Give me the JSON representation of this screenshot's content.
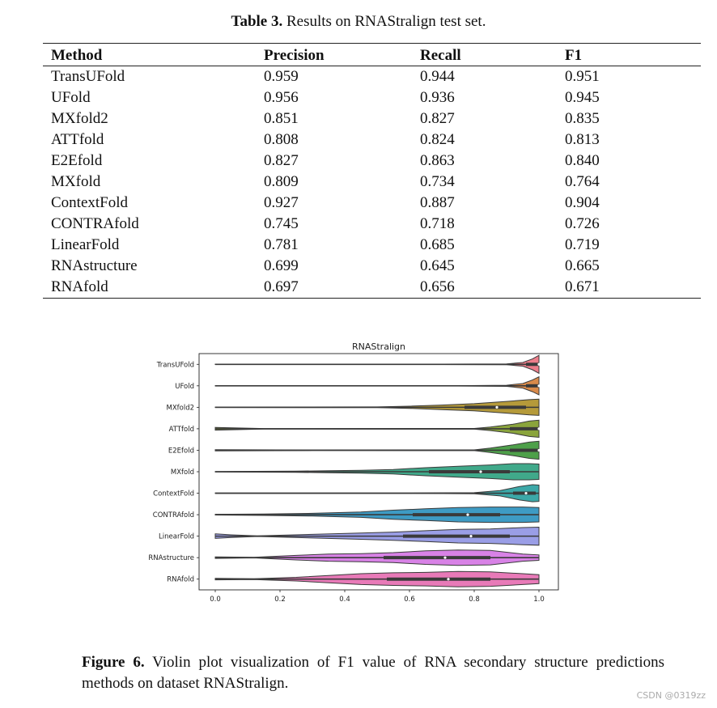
{
  "table": {
    "caption_label": "Table 3.",
    "caption_text": " Results on RNAStralign test set.",
    "headers": [
      "Method",
      "Precision",
      "Recall",
      "F1"
    ],
    "rows": [
      [
        "TransUFold",
        "0.959",
        "0.944",
        "0.951"
      ],
      [
        "UFold",
        "0.956",
        "0.936",
        "0.945"
      ],
      [
        "MXfold2",
        "0.851",
        "0.827",
        "0.835"
      ],
      [
        "ATTfold",
        "0.808",
        "0.824",
        "0.813"
      ],
      [
        "E2Efold",
        "0.827",
        "0.863",
        "0.840"
      ],
      [
        "MXfold",
        "0.809",
        "0.734",
        "0.764"
      ],
      [
        "ContextFold",
        "0.927",
        "0.887",
        "0.904"
      ],
      [
        "CONTRAfold",
        "0.745",
        "0.718",
        "0.726"
      ],
      [
        "LinearFold",
        "0.781",
        "0.685",
        "0.719"
      ],
      [
        "RNAstructure",
        "0.699",
        "0.645",
        "0.665"
      ],
      [
        "RNAfold",
        "0.697",
        "0.656",
        "0.671"
      ]
    ]
  },
  "chart_data": {
    "type": "violin",
    "title": "RNAStralign",
    "xlabel": "",
    "ylabel": "",
    "xlim": [
      -0.05,
      1.06
    ],
    "xticks": [
      "0.0",
      "0.2",
      "0.4",
      "0.6",
      "0.8",
      "1.0"
    ],
    "grid": false,
    "categories": [
      "TransUFold",
      "UFold",
      "MXfold2",
      "ATTfold",
      "E2Efold",
      "MXfold",
      "ContextFold",
      "CONTRAfold",
      "LinearFold",
      "RNAstructure",
      "RNAfold"
    ],
    "colors": [
      "#ed7d8a",
      "#d98a4a",
      "#b59a3a",
      "#8aa43c",
      "#4ea04a",
      "#40a98a",
      "#3ca8a8",
      "#3e9bc4",
      "#9a9ee6",
      "#d882e6",
      "#e87ab8"
    ],
    "series": [
      {
        "min": 0.0,
        "q1": 0.96,
        "median": 1.0,
        "q3": 1.0,
        "max": 1.0,
        "density": [
          [
            0.0,
            0.02
          ],
          [
            0.7,
            0.02
          ],
          [
            0.9,
            0.05
          ],
          [
            0.95,
            0.2
          ],
          [
            0.98,
            0.6
          ],
          [
            1.0,
            1.0
          ]
        ]
      },
      {
        "min": 0.0,
        "q1": 0.96,
        "median": 1.0,
        "q3": 1.0,
        "max": 1.0,
        "density": [
          [
            0.0,
            0.02
          ],
          [
            0.75,
            0.02
          ],
          [
            0.9,
            0.06
          ],
          [
            0.95,
            0.25
          ],
          [
            0.98,
            0.65
          ],
          [
            1.0,
            1.0
          ]
        ]
      },
      {
        "min": 0.0,
        "q1": 0.77,
        "median": 0.87,
        "q3": 0.96,
        "max": 1.0,
        "density": [
          [
            0.0,
            0.02
          ],
          [
            0.5,
            0.04
          ],
          [
            0.6,
            0.12
          ],
          [
            0.7,
            0.25
          ],
          [
            0.8,
            0.4
          ],
          [
            0.9,
            0.65
          ],
          [
            0.97,
            0.85
          ],
          [
            1.0,
            0.9
          ]
        ]
      },
      {
        "min": 0.0,
        "q1": 0.91,
        "median": 1.0,
        "q3": 1.0,
        "max": 1.0,
        "density": [
          [
            0.0,
            0.15
          ],
          [
            0.04,
            0.12
          ],
          [
            0.15,
            0.03
          ],
          [
            0.8,
            0.04
          ],
          [
            0.85,
            0.2
          ],
          [
            0.92,
            0.5
          ],
          [
            0.97,
            0.85
          ],
          [
            1.0,
            0.95
          ]
        ]
      },
      {
        "min": 0.0,
        "q1": 0.91,
        "median": 1.0,
        "q3": 1.0,
        "max": 1.0,
        "density": [
          [
            0.0,
            0.07
          ],
          [
            0.3,
            0.03
          ],
          [
            0.8,
            0.04
          ],
          [
            0.85,
            0.25
          ],
          [
            0.92,
            0.6
          ],
          [
            0.97,
            0.9
          ],
          [
            1.0,
            1.0
          ]
        ]
      },
      {
        "min": 0.0,
        "q1": 0.66,
        "median": 0.82,
        "q3": 0.91,
        "max": 1.0,
        "density": [
          [
            0.0,
            0.03
          ],
          [
            0.25,
            0.06
          ],
          [
            0.35,
            0.12
          ],
          [
            0.45,
            0.15
          ],
          [
            0.55,
            0.25
          ],
          [
            0.65,
            0.45
          ],
          [
            0.75,
            0.6
          ],
          [
            0.85,
            0.75
          ],
          [
            0.92,
            0.9
          ],
          [
            0.97,
            0.9
          ],
          [
            1.0,
            0.85
          ]
        ]
      },
      {
        "min": 0.0,
        "q1": 0.92,
        "median": 0.96,
        "q3": 0.99,
        "max": 1.0,
        "density": [
          [
            0.0,
            0.02
          ],
          [
            0.6,
            0.02
          ],
          [
            0.8,
            0.06
          ],
          [
            0.88,
            0.3
          ],
          [
            0.94,
            0.75
          ],
          [
            0.98,
            0.95
          ],
          [
            1.0,
            0.9
          ]
        ]
      },
      {
        "min": 0.0,
        "q1": 0.61,
        "median": 0.78,
        "q3": 0.88,
        "max": 1.0,
        "density": [
          [
            0.0,
            0.04
          ],
          [
            0.15,
            0.08
          ],
          [
            0.3,
            0.15
          ],
          [
            0.45,
            0.3
          ],
          [
            0.55,
            0.5
          ],
          [
            0.65,
            0.65
          ],
          [
            0.75,
            0.8
          ],
          [
            0.85,
            0.85
          ],
          [
            0.95,
            0.85
          ],
          [
            1.0,
            0.8
          ]
        ]
      },
      {
        "min": 0.0,
        "q1": 0.58,
        "median": 0.79,
        "q3": 0.91,
        "max": 1.0,
        "density": [
          [
            0.0,
            0.25
          ],
          [
            0.05,
            0.15
          ],
          [
            0.13,
            0.03
          ],
          [
            0.3,
            0.2
          ],
          [
            0.45,
            0.35
          ],
          [
            0.55,
            0.45
          ],
          [
            0.65,
            0.6
          ],
          [
            0.75,
            0.75
          ],
          [
            0.85,
            0.8
          ],
          [
            0.95,
            0.95
          ],
          [
            1.0,
            1.0
          ]
        ]
      },
      {
        "min": 0.0,
        "q1": 0.52,
        "median": 0.71,
        "q3": 0.85,
        "max": 1.0,
        "density": [
          [
            0.0,
            0.08
          ],
          [
            0.12,
            0.03
          ],
          [
            0.25,
            0.25
          ],
          [
            0.35,
            0.4
          ],
          [
            0.45,
            0.45
          ],
          [
            0.55,
            0.55
          ],
          [
            0.65,
            0.75
          ],
          [
            0.75,
            0.85
          ],
          [
            0.85,
            0.8
          ],
          [
            0.95,
            0.4
          ],
          [
            1.0,
            0.3
          ]
        ]
      },
      {
        "min": 0.0,
        "q1": 0.53,
        "median": 0.72,
        "q3": 0.85,
        "max": 1.0,
        "density": [
          [
            0.0,
            0.08
          ],
          [
            0.12,
            0.05
          ],
          [
            0.25,
            0.2
          ],
          [
            0.35,
            0.4
          ],
          [
            0.45,
            0.6
          ],
          [
            0.55,
            0.7
          ],
          [
            0.65,
            0.75
          ],
          [
            0.75,
            0.85
          ],
          [
            0.85,
            0.8
          ],
          [
            0.95,
            0.6
          ],
          [
            1.0,
            0.5
          ]
        ]
      }
    ]
  },
  "figure": {
    "caption_label": "Figure 6.",
    "caption_text": " Violin plot visualization of F1 value of RNA secondary structure predictions methods on dataset RNAStralign."
  },
  "watermark": "CSDN @0319zz"
}
